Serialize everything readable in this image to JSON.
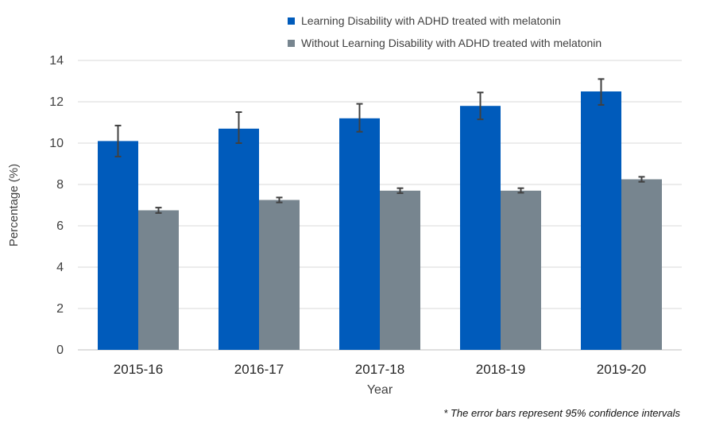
{
  "legend": {
    "series_1": "Learning Disability with ADHD treated with melatonin",
    "series_2": "Without Learning Disability with ADHD treated with melatonin"
  },
  "footnote": "* The error bars represent 95%  confidence intervals",
  "colors": {
    "series_1": "#005BBB",
    "series_2": "#77858F",
    "error_bar": "#404040",
    "grid": "#D9D9D9"
  },
  "chart_data": {
    "type": "bar",
    "title": "",
    "xlabel": "Year",
    "ylabel": "Percentage (%)",
    "ylim": [
      0,
      14
    ],
    "yticks": [
      0,
      2,
      4,
      6,
      8,
      10,
      12,
      14
    ],
    "grid": true,
    "legend_position": "top-right",
    "categories": [
      "2015-16",
      "2016-17",
      "2017-18",
      "2018-19",
      "2019-20"
    ],
    "series": [
      {
        "name": "Learning Disability with ADHD treated with melatonin",
        "values": [
          10.1,
          10.7,
          11.2,
          11.8,
          12.5
        ],
        "ci_low": [
          9.35,
          10.0,
          10.55,
          11.15,
          11.85
        ],
        "ci_high": [
          10.85,
          11.5,
          11.9,
          12.45,
          13.1
        ]
      },
      {
        "name": "Without Learning Disability with ADHD treated with melatonin",
        "values": [
          6.75,
          7.25,
          7.7,
          7.7,
          8.25
        ],
        "ci_low": [
          6.62,
          7.13,
          7.58,
          7.6,
          8.13
        ],
        "ci_high": [
          6.88,
          7.37,
          7.82,
          7.82,
          8.37
        ]
      }
    ]
  }
}
